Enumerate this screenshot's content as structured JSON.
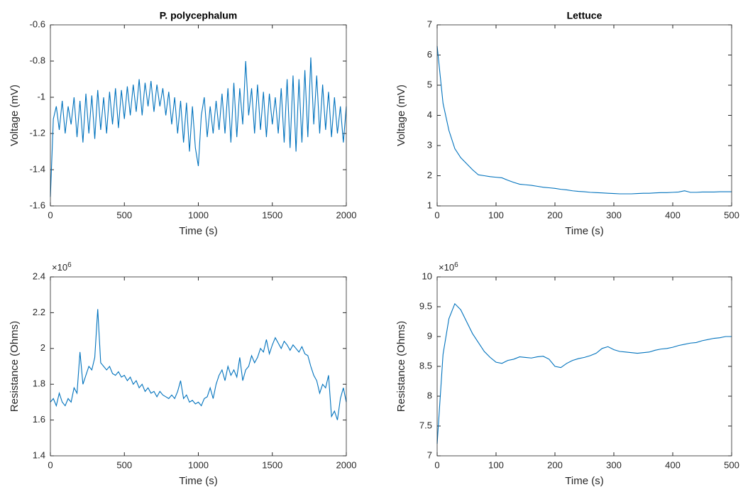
{
  "chart_data": [
    {
      "type": "line",
      "title": "P. polycephalum",
      "xlabel": "Time (s)",
      "ylabel": "Voltage (mV)",
      "color": "#0072bd",
      "xlim": [
        0,
        2000
      ],
      "xticks": [
        0,
        500,
        1000,
        1500,
        2000
      ],
      "ylim": [
        -1.6,
        -0.6
      ],
      "yticks": [
        -1.6,
        -1.4,
        -1.2,
        -1,
        -0.8,
        -0.6
      ],
      "x": [
        0,
        20,
        40,
        60,
        80,
        100,
        120,
        140,
        160,
        180,
        200,
        220,
        240,
        260,
        280,
        300,
        320,
        340,
        360,
        380,
        400,
        420,
        440,
        460,
        480,
        500,
        520,
        540,
        560,
        580,
        600,
        620,
        640,
        660,
        680,
        700,
        720,
        740,
        760,
        780,
        800,
        820,
        840,
        860,
        880,
        900,
        920,
        940,
        960,
        980,
        1000,
        1020,
        1040,
        1060,
        1080,
        1100,
        1120,
        1140,
        1160,
        1180,
        1200,
        1220,
        1240,
        1260,
        1280,
        1300,
        1320,
        1340,
        1360,
        1380,
        1400,
        1420,
        1440,
        1460,
        1480,
        1500,
        1520,
        1540,
        1560,
        1580,
        1600,
        1620,
        1640,
        1660,
        1680,
        1700,
        1720,
        1740,
        1760,
        1780,
        1800,
        1820,
        1840,
        1860,
        1880,
        1900,
        1920,
        1940,
        1960,
        1980,
        2000
      ],
      "values": [
        -1.55,
        -1.12,
        -1.05,
        -1.18,
        -1.02,
        -1.2,
        -1.05,
        -1.15,
        -1.0,
        -1.22,
        -1.02,
        -1.25,
        -0.98,
        -1.2,
        -0.99,
        -1.23,
        -0.96,
        -1.18,
        -1.0,
        -1.2,
        -0.97,
        -1.15,
        -0.95,
        -1.17,
        -0.96,
        -1.12,
        -0.94,
        -1.1,
        -0.93,
        -1.08,
        -0.9,
        -1.1,
        -0.92,
        -1.05,
        -0.91,
        -1.08,
        -0.93,
        -1.05,
        -0.95,
        -1.1,
        -0.97,
        -1.15,
        -1.0,
        -1.2,
        -1.02,
        -1.25,
        -1.03,
        -1.3,
        -1.05,
        -1.28,
        -1.38,
        -1.1,
        -1.0,
        -1.22,
        -1.05,
        -1.2,
        -1.02,
        -1.18,
        -0.98,
        -1.2,
        -0.95,
        -1.25,
        -0.92,
        -1.22,
        -0.95,
        -1.15,
        -0.8,
        -1.1,
        -0.95,
        -1.2,
        -0.93,
        -1.18,
        -0.97,
        -1.22,
        -0.98,
        -1.15,
        -1.0,
        -1.2,
        -0.95,
        -1.25,
        -0.9,
        -1.28,
        -0.88,
        -1.3,
        -0.9,
        -1.25,
        -0.85,
        -1.22,
        -0.78,
        -1.15,
        -0.88,
        -1.2,
        -0.93,
        -1.18,
        -0.97,
        -1.22,
        -1.0,
        -1.2,
        -1.05,
        -1.25,
        -1.05
      ]
    },
    {
      "type": "line",
      "title": "Lettuce",
      "xlabel": "Time (s)",
      "ylabel": "Voltage (mV)",
      "color": "#0072bd",
      "xlim": [
        0,
        500
      ],
      "xticks": [
        0,
        100,
        200,
        300,
        400,
        500
      ],
      "ylim": [
        1,
        7
      ],
      "yticks": [
        1,
        2,
        3,
        4,
        5,
        6,
        7
      ],
      "x": [
        0,
        10,
        20,
        30,
        40,
        50,
        60,
        70,
        80,
        90,
        100,
        110,
        120,
        130,
        140,
        150,
        160,
        170,
        180,
        190,
        200,
        210,
        220,
        230,
        240,
        250,
        260,
        270,
        280,
        290,
        300,
        310,
        320,
        330,
        340,
        350,
        360,
        370,
        380,
        390,
        400,
        410,
        420,
        430,
        440,
        450,
        460,
        470,
        480,
        490,
        500
      ],
      "values": [
        6.3,
        4.4,
        3.5,
        2.9,
        2.6,
        2.4,
        2.2,
        2.03,
        2.0,
        1.97,
        1.95,
        1.93,
        1.85,
        1.78,
        1.72,
        1.7,
        1.68,
        1.65,
        1.62,
        1.6,
        1.58,
        1.55,
        1.53,
        1.5,
        1.48,
        1.47,
        1.45,
        1.44,
        1.43,
        1.42,
        1.41,
        1.4,
        1.4,
        1.4,
        1.41,
        1.42,
        1.42,
        1.43,
        1.44,
        1.44,
        1.45,
        1.46,
        1.5,
        1.45,
        1.45,
        1.46,
        1.46,
        1.46,
        1.47,
        1.47,
        1.47
      ]
    },
    {
      "type": "line",
      "xlabel": "Time (s)",
      "ylabel": "Resistance (Ohms)",
      "color": "#0072bd",
      "y_exponent": {
        "base": "×10",
        "power": "6"
      },
      "xlim": [
        0,
        2000
      ],
      "xticks": [
        0,
        500,
        1000,
        1500,
        2000
      ],
      "ylim": [
        1400000,
        2400000
      ],
      "yticks": [
        {
          "value": 1400000,
          "label": "1.4"
        },
        {
          "value": 1600000,
          "label": "1.6"
        },
        {
          "value": 1800000,
          "label": "1.8"
        },
        {
          "value": 2000000,
          "label": "2"
        },
        {
          "value": 2200000,
          "label": "2.2"
        },
        {
          "value": 2400000,
          "label": "2.4"
        }
      ],
      "x": [
        0,
        20,
        40,
        60,
        80,
        100,
        120,
        140,
        160,
        180,
        200,
        220,
        240,
        260,
        280,
        300,
        320,
        340,
        360,
        380,
        400,
        420,
        440,
        460,
        480,
        500,
        520,
        540,
        560,
        580,
        600,
        620,
        640,
        660,
        680,
        700,
        720,
        740,
        760,
        780,
        800,
        820,
        840,
        860,
        880,
        900,
        920,
        940,
        960,
        980,
        1000,
        1020,
        1040,
        1060,
        1080,
        1100,
        1120,
        1140,
        1160,
        1180,
        1200,
        1220,
        1240,
        1260,
        1280,
        1300,
        1320,
        1340,
        1360,
        1380,
        1400,
        1420,
        1440,
        1460,
        1480,
        1500,
        1520,
        1540,
        1560,
        1580,
        1600,
        1620,
        1640,
        1660,
        1680,
        1700,
        1720,
        1740,
        1760,
        1780,
        1800,
        1820,
        1840,
        1860,
        1880,
        1900,
        1920,
        1940,
        1960,
        1980,
        2000
      ],
      "values": [
        1700000,
        1720000,
        1680000,
        1750000,
        1700000,
        1680000,
        1720000,
        1700000,
        1780000,
        1750000,
        1980000,
        1800000,
        1850000,
        1900000,
        1880000,
        1950000,
        2220000,
        1920000,
        1900000,
        1880000,
        1900000,
        1860000,
        1850000,
        1870000,
        1840000,
        1850000,
        1820000,
        1840000,
        1800000,
        1820000,
        1780000,
        1800000,
        1760000,
        1780000,
        1750000,
        1760000,
        1730000,
        1760000,
        1740000,
        1730000,
        1720000,
        1740000,
        1720000,
        1760000,
        1820000,
        1720000,
        1740000,
        1700000,
        1710000,
        1690000,
        1700000,
        1680000,
        1720000,
        1730000,
        1780000,
        1720000,
        1800000,
        1850000,
        1880000,
        1820000,
        1900000,
        1850000,
        1880000,
        1840000,
        1950000,
        1820000,
        1880000,
        1900000,
        1960000,
        1920000,
        1950000,
        2000000,
        1980000,
        2050000,
        1970000,
        2020000,
        2060000,
        2030000,
        2000000,
        2040000,
        2020000,
        1990000,
        2020000,
        2000000,
        1980000,
        2010000,
        1970000,
        1960000,
        1900000,
        1850000,
        1820000,
        1750000,
        1800000,
        1780000,
        1850000,
        1620000,
        1650000,
        1600000,
        1720000,
        1780000,
        1700000
      ]
    },
    {
      "type": "line",
      "xlabel": "Time (s)",
      "ylabel": "Resistance (Ohms)",
      "color": "#0072bd",
      "y_exponent": {
        "base": "×10",
        "power": "6"
      },
      "xlim": [
        0,
        500
      ],
      "xticks": [
        0,
        100,
        200,
        300,
        400,
        500
      ],
      "ylim": [
        7000000,
        10000000
      ],
      "yticks": [
        {
          "value": 7000000,
          "label": "7"
        },
        {
          "value": 7500000,
          "label": "7.5"
        },
        {
          "value": 8000000,
          "label": "8"
        },
        {
          "value": 8500000,
          "label": "8.5"
        },
        {
          "value": 9000000,
          "label": "9"
        },
        {
          "value": 9500000,
          "label": "9.5"
        },
        {
          "value": 10000000,
          "label": "10"
        }
      ],
      "x": [
        0,
        10,
        20,
        30,
        40,
        50,
        60,
        70,
        80,
        90,
        100,
        110,
        120,
        130,
        140,
        150,
        160,
        170,
        180,
        190,
        200,
        210,
        220,
        230,
        240,
        250,
        260,
        270,
        280,
        290,
        300,
        310,
        320,
        330,
        340,
        350,
        360,
        370,
        380,
        390,
        400,
        410,
        420,
        430,
        440,
        450,
        460,
        470,
        480,
        490,
        500
      ],
      "values": [
        7200000,
        8700000,
        9300000,
        9550000,
        9450000,
        9250000,
        9050000,
        8900000,
        8750000,
        8650000,
        8570000,
        8550000,
        8600000,
        8620000,
        8660000,
        8650000,
        8640000,
        8660000,
        8670000,
        8620000,
        8500000,
        8480000,
        8550000,
        8600000,
        8630000,
        8650000,
        8680000,
        8720000,
        8800000,
        8830000,
        8780000,
        8750000,
        8740000,
        8730000,
        8720000,
        8730000,
        8740000,
        8770000,
        8790000,
        8800000,
        8820000,
        8850000,
        8870000,
        8890000,
        8900000,
        8930000,
        8950000,
        8970000,
        8980000,
        9000000,
        9000000
      ]
    }
  ]
}
